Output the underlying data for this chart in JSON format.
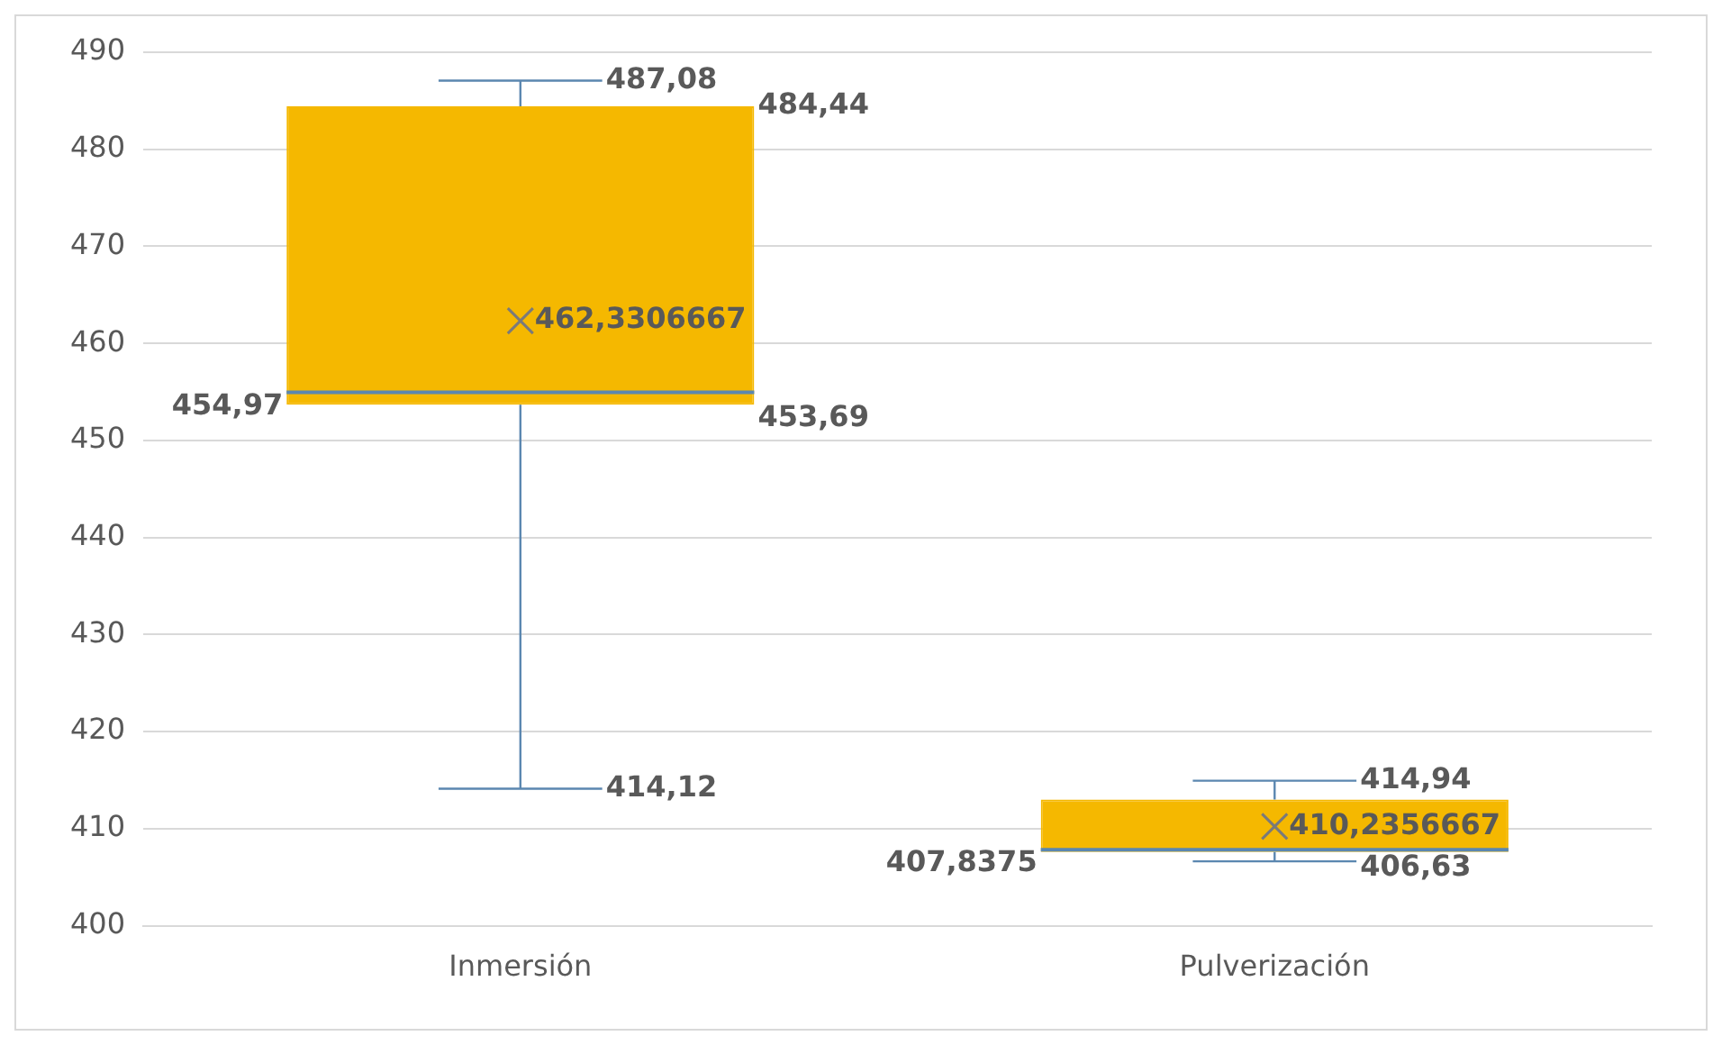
{
  "chart_data": {
    "type": "box",
    "categories": [
      "Inmersión",
      "Pulverización"
    ],
    "boxes": [
      {
        "low": 414.12,
        "q1": 453.69,
        "median": 454.97,
        "q3": 484.44,
        "high": 487.08,
        "mean": 462.3306667
      },
      {
        "low": 406.63,
        "q1": 407.6,
        "median": 407.8375,
        "q3": 413,
        "high": 414.94,
        "mean": 410.2356667
      }
    ],
    "color": "#f5b800",
    "ylim": [
      400,
      490
    ],
    "yticks": [
      400,
      410,
      420,
      430,
      440,
      450,
      460,
      470,
      480,
      490
    ],
    "grid": "y",
    "annotations": [
      {
        "text": "487,08",
        "x": "Inmersión",
        "y": 487.08
      },
      "484,44",
      "462,3306667",
      "454,97",
      "453,69",
      {
        "text": "414,12",
        "x": "Inmersión",
        "y": 414.12
      },
      {
        "text": "414,94",
        "x": "Pulverización",
        "y": 414.94
      },
      "410,2356667",
      "407,8375",
      {
        "text": "406,63",
        "x": "Pulverización",
        "y": 406.63
      }
    ]
  }
}
